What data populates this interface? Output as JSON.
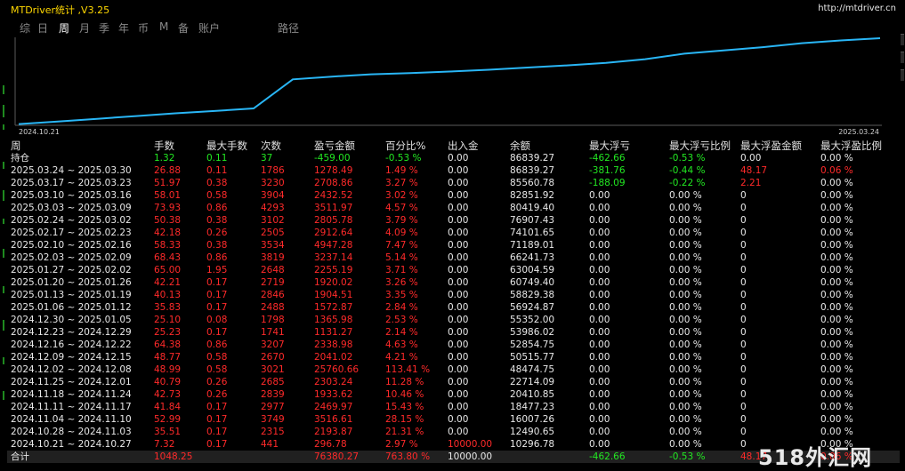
{
  "app": {
    "title": "MTDriver统计 ,V3.25",
    "url": "http://mtdriver.cn"
  },
  "tabs": [
    {
      "label": "综",
      "active": false
    },
    {
      "label": "日",
      "active": false
    },
    {
      "label": "周",
      "active": true
    },
    {
      "label": "月",
      "active": false
    },
    {
      "label": "季",
      "active": false
    },
    {
      "label": "年",
      "active": false
    },
    {
      "label": "币",
      "active": false
    },
    {
      "label": "M",
      "active": false
    },
    {
      "label": "备",
      "active": false
    },
    {
      "label": "账户",
      "active": false
    },
    {
      "label": "路径",
      "active": false
    }
  ],
  "chart_data": {
    "type": "line",
    "x_start_label": "2024.10.21",
    "x_end_label": "2025.03.24",
    "line_color": "#29b6f6",
    "series": [
      {
        "values": [
          296.78,
          2490.65,
          4959.85,
          7429.02,
          9839.82,
          11890.02,
          14193.64,
          39954.3,
          42347.95,
          44389.77,
          45520.04,
          46886.02,
          48458.89,
          50363.4,
          52283.42,
          54538.61,
          57775.75,
          62723.03,
          65635.67,
          68441.45,
          71953.42,
          74385.94,
          76388.31
        ]
      }
    ]
  },
  "table": {
    "headers": [
      "周",
      "手数",
      "最大手数",
      "次数",
      "盈亏金额",
      "百分比%",
      "出入金",
      "余额",
      "最大浮亏",
      "最大浮亏比例",
      "最大浮盈金额",
      "最大浮盈比例"
    ],
    "position_row": [
      "持仓",
      "1.32",
      "0.11",
      "37",
      "-459.00",
      "-0.53 %",
      "0.00",
      "86839.27",
      "-462.66",
      "-0.53 %",
      "0.00",
      "0.00 %"
    ],
    "rows": [
      [
        "2025.03.24 ~ 2025.03.30",
        "26.88",
        "0.11",
        "1786",
        "1278.49",
        "1.49 %",
        "0.00",
        "86839.27",
        "-381.76",
        "-0.44 %",
        "48.17",
        "0.06 %"
      ],
      [
        "2025.03.17 ~ 2025.03.23",
        "51.97",
        "0.38",
        "3230",
        "2708.86",
        "3.27 %",
        "0.00",
        "85560.78",
        "-188.09",
        "-0.22 %",
        "2.21",
        "0.00 %"
      ],
      [
        "2025.03.10 ~ 2025.03.16",
        "58.01",
        "0.58",
        "3904",
        "2432.52",
        "3.02 %",
        "0.00",
        "82851.92",
        "0.00",
        "0.00 %",
        "0",
        "0.00 %"
      ],
      [
        "2025.03.03 ~ 2025.03.09",
        "73.93",
        "0.86",
        "4293",
        "3511.97",
        "4.57 %",
        "0.00",
        "80419.40",
        "0.00",
        "0.00 %",
        "0",
        "0.00 %"
      ],
      [
        "2025.02.24 ~ 2025.03.02",
        "50.38",
        "0.38",
        "3102",
        "2805.78",
        "3.79 %",
        "0.00",
        "76907.43",
        "0.00",
        "0.00 %",
        "0",
        "0.00 %"
      ],
      [
        "2025.02.17 ~ 2025.02.23",
        "42.18",
        "0.26",
        "2505",
        "2912.64",
        "4.09 %",
        "0.00",
        "74101.65",
        "0.00",
        "0.00 %",
        "0",
        "0.00 %"
      ],
      [
        "2025.02.10 ~ 2025.02.16",
        "58.33",
        "0.38",
        "3534",
        "4947.28",
        "7.47 %",
        "0.00",
        "71189.01",
        "0.00",
        "0.00 %",
        "0",
        "0.00 %"
      ],
      [
        "2025.02.03 ~ 2025.02.09",
        "68.43",
        "0.86",
        "3819",
        "3237.14",
        "5.14 %",
        "0.00",
        "66241.73",
        "0.00",
        "0.00 %",
        "0",
        "0.00 %"
      ],
      [
        "2025.01.27 ~ 2025.02.02",
        "65.00",
        "1.95",
        "2648",
        "2255.19",
        "3.71 %",
        "0.00",
        "63004.59",
        "0.00",
        "0.00 %",
        "0",
        "0.00 %"
      ],
      [
        "2025.01.20 ~ 2025.01.26",
        "42.21",
        "0.17",
        "2719",
        "1920.02",
        "3.26 %",
        "0.00",
        "60749.40",
        "0.00",
        "0.00 %",
        "0",
        "0.00 %"
      ],
      [
        "2025.01.13 ~ 2025.01.19",
        "40.13",
        "0.17",
        "2846",
        "1904.51",
        "3.35 %",
        "0.00",
        "58829.38",
        "0.00",
        "0.00 %",
        "0",
        "0.00 %"
      ],
      [
        "2025.01.06 ~ 2025.01.12",
        "35.83",
        "0.17",
        "2488",
        "1572.87",
        "2.84 %",
        "0.00",
        "56924.87",
        "0.00",
        "0.00 %",
        "0",
        "0.00 %"
      ],
      [
        "2024.12.30 ~ 2025.01.05",
        "25.10",
        "0.08",
        "1798",
        "1365.98",
        "2.53 %",
        "0.00",
        "55352.00",
        "0.00",
        "0.00 %",
        "0",
        "0.00 %"
      ],
      [
        "2024.12.23 ~ 2024.12.29",
        "25.23",
        "0.17",
        "1741",
        "1131.27",
        "2.14 %",
        "0.00",
        "53986.02",
        "0.00",
        "0.00 %",
        "0",
        "0.00 %"
      ],
      [
        "2024.12.16 ~ 2024.12.22",
        "64.38",
        "0.86",
        "3207",
        "2338.98",
        "4.63 %",
        "0.00",
        "52854.75",
        "0.00",
        "0.00 %",
        "0",
        "0.00 %"
      ],
      [
        "2024.12.09 ~ 2024.12.15",
        "48.77",
        "0.58",
        "2670",
        "2041.02",
        "4.21 %",
        "0.00",
        "50515.77",
        "0.00",
        "0.00 %",
        "0",
        "0.00 %"
      ],
      [
        "2024.12.02 ~ 2024.12.08",
        "48.99",
        "0.58",
        "3021",
        "25760.66",
        "113.41 %",
        "0.00",
        "48474.75",
        "0.00",
        "0.00 %",
        "0",
        "0.00 %"
      ],
      [
        "2024.11.25 ~ 2024.12.01",
        "40.79",
        "0.26",
        "2685",
        "2303.24",
        "11.28 %",
        "0.00",
        "22714.09",
        "0.00",
        "0.00 %",
        "0",
        "0.00 %"
      ],
      [
        "2024.11.18 ~ 2024.11.24",
        "42.73",
        "0.26",
        "2839",
        "1933.62",
        "10.46 %",
        "0.00",
        "20410.85",
        "0.00",
        "0.00 %",
        "0",
        "0.00 %"
      ],
      [
        "2024.11.11 ~ 2024.11.17",
        "41.84",
        "0.17",
        "2977",
        "2469.97",
        "15.43 %",
        "0.00",
        "18477.23",
        "0.00",
        "0.00 %",
        "0",
        "0.00 %"
      ],
      [
        "2024.11.04 ~ 2024.11.10",
        "52.99",
        "0.17",
        "3749",
        "3516.61",
        "28.15 %",
        "0.00",
        "16007.26",
        "0.00",
        "0.00 %",
        "0",
        "0.00 %"
      ],
      [
        "2024.10.28 ~ 2024.11.03",
        "35.51",
        "0.17",
        "2315",
        "2193.87",
        "21.31 %",
        "0.00",
        "12490.65",
        "0.00",
        "0.00 %",
        "0",
        "0.00 %"
      ],
      [
        "2024.10.21 ~ 2024.10.27",
        "7.32",
        "0.17",
        "441",
        "296.78",
        "2.97 %",
        "10000.00",
        "10296.78",
        "0.00",
        "0.00 %",
        "0",
        "0.00 %"
      ]
    ],
    "total_row": [
      "合计",
      "1048.25",
      "",
      "",
      "76380.27",
      "763.80 %",
      "10000.00",
      "",
      "-462.66",
      "-0.53 %",
      "48.17",
      "0.06 %"
    ]
  },
  "watermark": "518外汇网",
  "colors": {
    "title": "#ffd800",
    "positive": "#ff2a2a",
    "negative": "#22e822",
    "neutral": "#e8e8e8",
    "line": "#29b6f6"
  }
}
